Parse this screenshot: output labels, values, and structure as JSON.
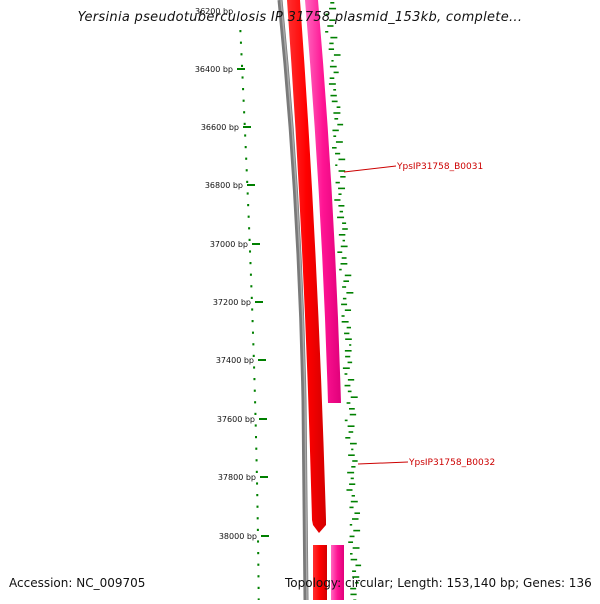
{
  "title": "Yersinia pseudotuberculosis IP 31758 plasmid_153kb, complete...",
  "top_partial_label": "36200 bp",
  "tick_labels": [
    "36400 bp",
    "36600 bp",
    "36800 bp",
    "37000 bp",
    "37200 bp",
    "37400 bp",
    "37600 bp",
    "37800 bp",
    "38000 bp"
  ],
  "genes": [
    {
      "name": "YpsIP31758_B0031"
    },
    {
      "name": "YpsIP31758_B0032"
    }
  ],
  "colors": {
    "backbone": "#7a7a7a",
    "cds_red": "#ff0000",
    "cds_pink": "#ff1493",
    "gc_skew": "#008000",
    "label": "#cc0000"
  },
  "footer": {
    "accession": "Accession: NC_009705",
    "summary": "Topology: circular; Length: 153,140 bp; Genes: 136"
  }
}
